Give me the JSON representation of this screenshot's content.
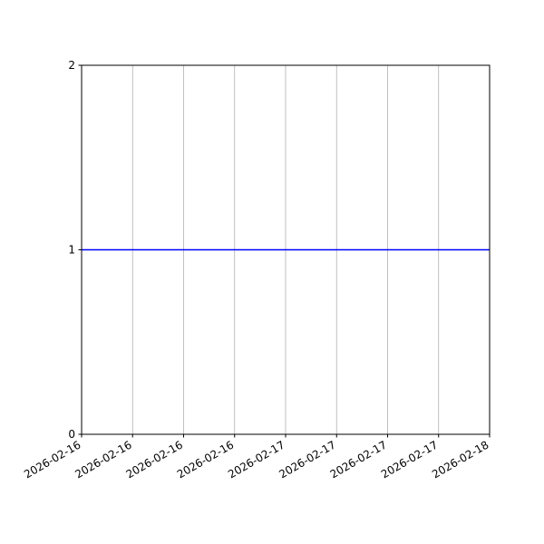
{
  "chart_data": {
    "type": "line",
    "title": "",
    "xlabel": "",
    "ylabel": "",
    "x_tick_labels": [
      "2026-02-16",
      "2026-02-16",
      "2026-02-16",
      "2026-02-16",
      "2026-02-17",
      "2026-02-17",
      "2026-02-17",
      "2026-02-17",
      "2026-02-18"
    ],
    "x_ticks": [
      "2026-02-16 00:00",
      "2026-02-16 06:00",
      "2026-02-16 12:00",
      "2026-02-16 18:00",
      "2026-02-17 00:00",
      "2026-02-17 06:00",
      "2026-02-17 12:00",
      "2026-02-17 18:00",
      "2026-02-18 00:00"
    ],
    "xlim": [
      "2026-02-16 00:00",
      "2026-02-18 00:00"
    ],
    "ylim": [
      0,
      2
    ],
    "y_ticks": [
      0,
      1,
      2
    ],
    "grid": "x-only",
    "series": [
      {
        "color": "#0000ff",
        "x": [
          "2026-02-16 00:00",
          "2026-02-18 00:00"
        ],
        "y": [
          1,
          1
        ]
      }
    ],
    "colors": {
      "line": "#0000ff",
      "grid": "#b0b0b0",
      "axes": "#000000"
    }
  }
}
